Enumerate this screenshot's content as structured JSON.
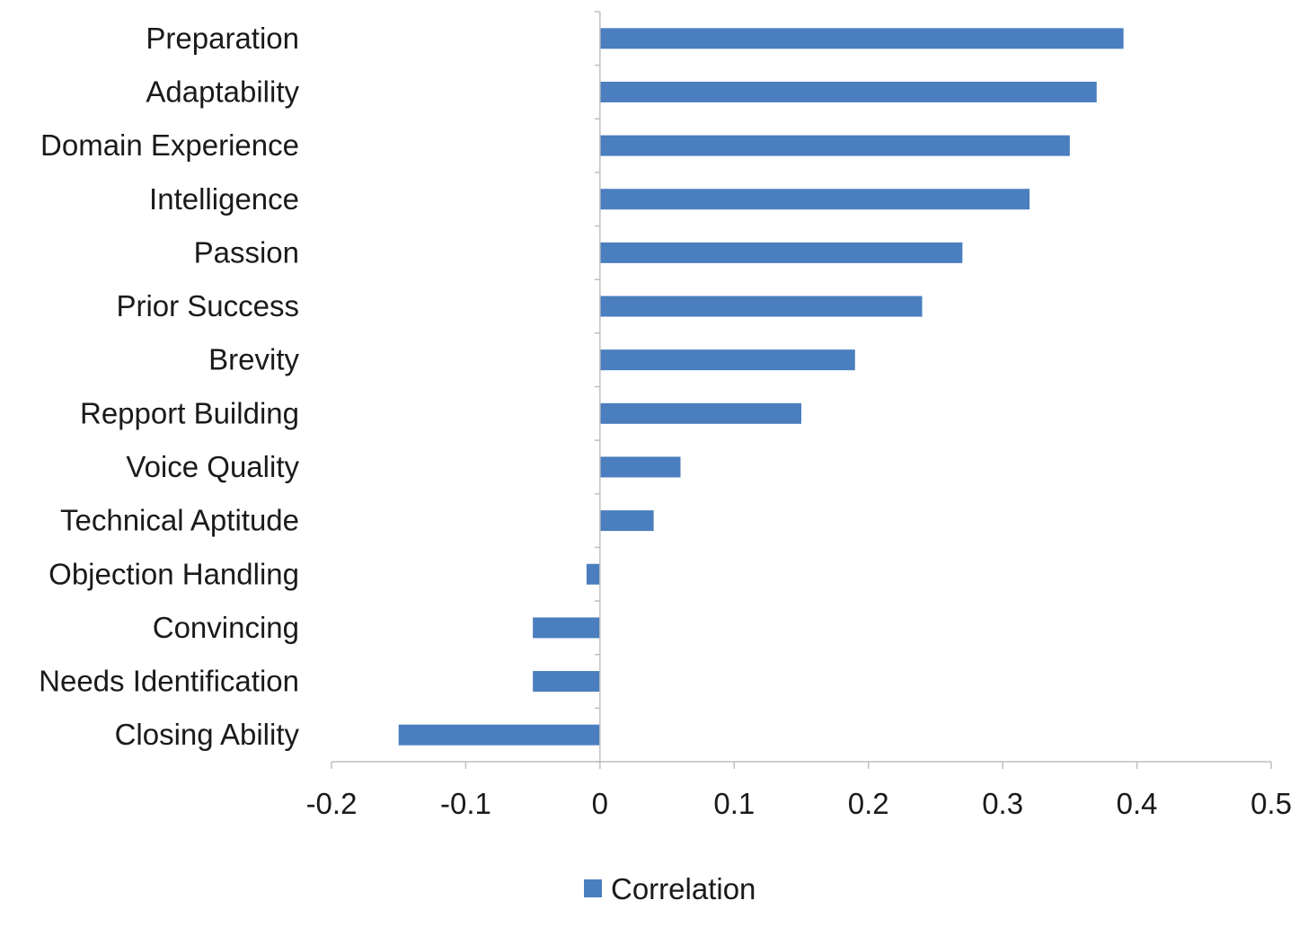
{
  "chart_data": {
    "type": "bar",
    "orientation": "horizontal",
    "categories": [
      "Preparation",
      "Adaptability",
      "Domain Experience",
      "Intelligence",
      "Passion",
      "Prior Success",
      "Brevity",
      "Repport Building",
      "Voice Quality",
      "Technical Aptitude",
      "Objection Handling",
      "Convincing",
      "Needs Identification",
      "Closing Ability"
    ],
    "series": [
      {
        "name": "Correlation",
        "values": [
          0.39,
          0.37,
          0.35,
          0.32,
          0.27,
          0.24,
          0.19,
          0.15,
          0.06,
          0.04,
          -0.01,
          -0.05,
          -0.05,
          -0.15
        ],
        "color": "#4a7ebf"
      }
    ],
    "title": "",
    "xlabel": "",
    "ylabel": "",
    "xlim": [
      -0.2,
      0.5
    ],
    "xticks": [
      -0.2,
      -0.1,
      0,
      0.1,
      0.2,
      0.3,
      0.4,
      0.5
    ],
    "xtick_labels": [
      "-0.2",
      "-0.1",
      "0",
      "0.1",
      "0.2",
      "0.3",
      "0.4",
      "0.5"
    ],
    "grid": false,
    "legend": "bottom"
  }
}
